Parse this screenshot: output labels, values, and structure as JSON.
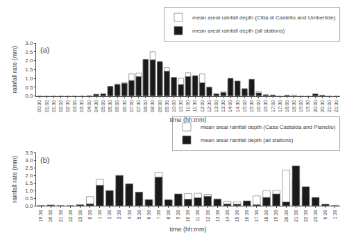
{
  "chart_data": [
    {
      "type": "bar",
      "annotations": [
        "(a)"
      ],
      "xlabel": "time (hh:mm)",
      "ylabel": "rainfall rate (mm)",
      "categories": [
        "00:30",
        "01:00",
        "01:30",
        "02:00",
        "02:30",
        "03:00",
        "03:30",
        "04:00",
        "04:30",
        "05:00",
        "05:30",
        "06:00",
        "06:30",
        "07:00",
        "07:30",
        "08:00",
        "08:30",
        "09:00",
        "09:30",
        "10:00",
        "10:30",
        "11:00",
        "11:30",
        "12:00",
        "12:30",
        "13:00",
        "13:30",
        "14:00",
        "14:30",
        "15:00",
        "15:30",
        "16:00",
        "16:30",
        "17:00",
        "17:30",
        "18:00",
        "18:30",
        "19:00",
        "19:30",
        "20:00",
        "20:30",
        "21:00",
        "21:30"
      ],
      "series": [
        {
          "name": "mean areal rainfall depth (Città di Castello and Umbertide)",
          "color": "#ffffff",
          "values": [
            0.0,
            0.0,
            0.0,
            0.0,
            0.0,
            0.0,
            0.0,
            0.0,
            0.0,
            0.0,
            0.5,
            0.68,
            0.75,
            1.25,
            1.3,
            2.07,
            2.5,
            1.85,
            1.6,
            1.05,
            1.0,
            1.32,
            1.05,
            1.25,
            0.0,
            0.0,
            0.25,
            0.88,
            0.0,
            0.2,
            0.7,
            0.25,
            0.05,
            0.0,
            0.0,
            0.0,
            0.05,
            0.0,
            0.0,
            0.1,
            0.0,
            0.0,
            0.0
          ]
        },
        {
          "name": "mean areal rainfall depth (all stations)",
          "color": "#1a1a1a",
          "values": [
            0.0,
            0.0,
            0.0,
            0.0,
            0.0,
            0.0,
            0.0,
            0.02,
            0.1,
            0.13,
            0.55,
            0.65,
            0.72,
            0.88,
            1.1,
            2.07,
            2.05,
            1.95,
            1.4,
            1.05,
            0.65,
            1.1,
            1.15,
            0.75,
            0.5,
            0.13,
            0.2,
            1.0,
            0.85,
            0.42,
            0.95,
            0.18,
            0.07,
            0.06,
            0.0,
            0.05,
            0.0,
            0.0,
            0.0,
            0.12,
            0.05,
            0.0,
            0.0
          ]
        }
      ],
      "ylim": [
        0,
        3.0
      ],
      "yticks": [
        {
          "value": 0,
          "label": "0.0"
        },
        0.5,
        {
          "value": 1,
          "label": "1.0"
        },
        1.5,
        {
          "value": 2,
          "label": "2.0"
        },
        2.5,
        {
          "value": 3,
          "label": "3.0"
        }
      ],
      "legend": "upper right",
      "grid": false
    },
    {
      "type": "bar",
      "annotations": [
        "(b)"
      ],
      "xlabel": "time (hh:mm)",
      "ylabel": "rainfall rate (mm)",
      "categories": [
        "19:30",
        "20:30",
        "21:30",
        "22:30",
        "23:30",
        "0:30",
        "1:30",
        "2:30",
        "3:30",
        "4:30",
        "5:30",
        "6:30",
        "7:30",
        "8:30",
        "9:30",
        "10:30",
        "11:30",
        "12:30",
        "13:30",
        "14:30",
        "15:30",
        "16:30",
        "17:30",
        "18:30",
        "19:30",
        "20:30",
        "21:30",
        "22:30",
        "23:30",
        "0:30",
        "1:30"
      ],
      "series": [
        {
          "name": "mean areal rainfall depth (Casa Castalda and Pianello)",
          "color": "#ffffff",
          "values": [
            0.0,
            0.0,
            0.0,
            0.0,
            0.0,
            0.6,
            1.75,
            0.45,
            1.12,
            1.25,
            0.5,
            0.4,
            2.2,
            0.38,
            0.62,
            0.8,
            0.82,
            0.75,
            0.3,
            0.3,
            0.25,
            0.1,
            0.65,
            1.0,
            1.0,
            2.35,
            1.65,
            0.63,
            0.0,
            0.0,
            0.0
          ]
        },
        {
          "name": "mean areal rainfall depth (all stations)",
          "color": "#1a1a1a",
          "values": [
            0.0,
            0.05,
            0.0,
            0.0,
            0.07,
            0.13,
            1.35,
            1.0,
            2.0,
            1.45,
            0.9,
            0.4,
            1.88,
            0.4,
            0.78,
            0.43,
            0.53,
            0.63,
            0.45,
            0.12,
            0.1,
            0.32,
            0.07,
            0.55,
            0.78,
            0.25,
            2.63,
            1.25,
            0.55,
            0.1,
            0.0
          ]
        }
      ],
      "ylim": [
        0,
        3.5
      ],
      "yticks": [
        {
          "value": 0,
          "label": "0.0"
        },
        0.5,
        {
          "value": 1,
          "label": "1.0"
        },
        1.5,
        {
          "value": 2,
          "label": "2.0"
        },
        2.5,
        {
          "value": 3,
          "label": "3.0"
        },
        3.5
      ],
      "legend": "upper right",
      "grid": false
    }
  ]
}
